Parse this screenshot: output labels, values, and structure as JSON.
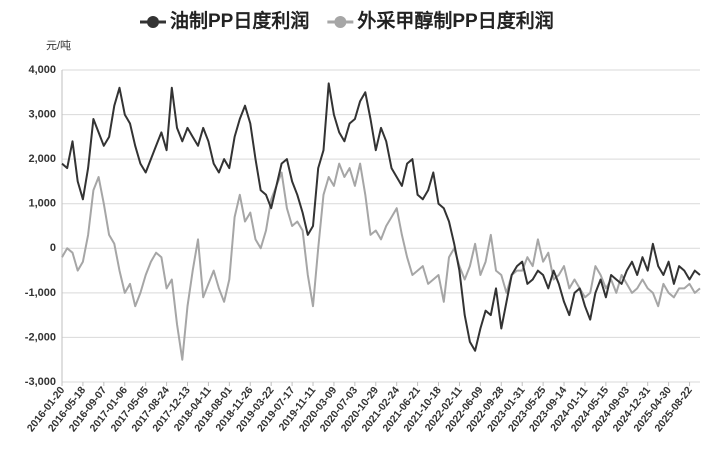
{
  "chart_data": {
    "type": "line",
    "y_unit": "元/吨",
    "categories": [
      "2016-01-20",
      null,
      null,
      null,
      "2016-05-18",
      null,
      null,
      null,
      "2016-09-07",
      null,
      null,
      null,
      "2017-01-06",
      null,
      null,
      null,
      "2017-05-05",
      null,
      null,
      null,
      "2017-08-24",
      null,
      null,
      null,
      "2017-12-13",
      null,
      null,
      null,
      "2018-04-11",
      null,
      null,
      null,
      "2018-08-01",
      null,
      null,
      null,
      "2018-11-26",
      null,
      null,
      null,
      "2019-03-22",
      null,
      null,
      null,
      "2019-07-17",
      null,
      null,
      null,
      "2019-11-11",
      null,
      null,
      null,
      "2020-03-09",
      null,
      null,
      null,
      "2020-07-03",
      null,
      null,
      null,
      "2020-10-29",
      null,
      null,
      null,
      "2021-02-24",
      null,
      null,
      null,
      "2021-06-21",
      null,
      null,
      null,
      "2021-10-18",
      null,
      null,
      null,
      "2022-02-11",
      null,
      null,
      null,
      "2022-06-09",
      null,
      null,
      null,
      "2022-09-28",
      null,
      null,
      null,
      "2023-01-31",
      null,
      null,
      null,
      "2023-05-25",
      null,
      null,
      null,
      "2023-09-14",
      null,
      null,
      null,
      "2024-01-11",
      null,
      null,
      null,
      "2024-05-15",
      null,
      null,
      null,
      "2024-09-03",
      null,
      null,
      null,
      "2024-12-31",
      null,
      null,
      null,
      "2025-04-30",
      null,
      null,
      null,
      "2025-08-22",
      null,
      null
    ],
    "series": [
      {
        "name": "油制PP日度利润",
        "color": "#333333",
        "values": [
          1900,
          1800,
          2400,
          1500,
          1100,
          1800,
          2900,
          2600,
          2300,
          2500,
          3200,
          3600,
          3000,
          2800,
          2300,
          1900,
          1700,
          2000,
          2300,
          2600,
          2200,
          3600,
          2700,
          2400,
          2700,
          2500,
          2300,
          2700,
          2400,
          1900,
          1700,
          2000,
          1800,
          2500,
          2900,
          3200,
          2800,
          2000,
          1300,
          1200,
          900,
          1400,
          1900,
          2000,
          1500,
          1200,
          800,
          300,
          500,
          1800,
          2200,
          3700,
          3000,
          2600,
          2400,
          2800,
          2900,
          3300,
          3500,
          2900,
          2200,
          2700,
          2400,
          1800,
          1600,
          1400,
          1900,
          2000,
          1200,
          1100,
          1300,
          1700,
          1000,
          900,
          600,
          100,
          -500,
          -1500,
          -2100,
          -2300,
          -1800,
          -1400,
          -1500,
          -900,
          -1800,
          -1200,
          -600,
          -400,
          -300,
          -800,
          -700,
          -500,
          -600,
          -900,
          -500,
          -800,
          -1200,
          -1500,
          -1000,
          -900,
          -1300,
          -1600,
          -1000,
          -700,
          -1100,
          -600,
          -700,
          -800,
          -500,
          -300,
          -600,
          -200,
          -500,
          100,
          -400,
          -600,
          -300,
          -800,
          -400,
          -500,
          -700,
          -500,
          -600
        ]
      },
      {
        "name": "外采甲醇制PP日度利润",
        "color": "#a6a6a6",
        "values": [
          -200,
          0,
          -100,
          -500,
          -300,
          300,
          1300,
          1600,
          1000,
          300,
          100,
          -500,
          -1000,
          -800,
          -1300,
          -1000,
          -600,
          -300,
          -100,
          -200,
          -900,
          -700,
          -1700,
          -2500,
          -1300,
          -500,
          200,
          -1100,
          -800,
          -500,
          -900,
          -1200,
          -700,
          700,
          1200,
          600,
          800,
          200,
          0,
          400,
          1100,
          1400,
          1700,
          900,
          500,
          600,
          400,
          -600,
          -1300,
          0,
          1200,
          1600,
          1400,
          1900,
          1600,
          1800,
          1400,
          1900,
          1200,
          300,
          400,
          200,
          500,
          700,
          900,
          300,
          -200,
          -600,
          -500,
          -400,
          -800,
          -700,
          -600,
          -1200,
          -200,
          0,
          -400,
          -700,
          -400,
          100,
          -600,
          -300,
          300,
          -500,
          -600,
          -1000,
          -600,
          -500,
          -500,
          -200,
          -400,
          200,
          -300,
          -100,
          -700,
          -600,
          -400,
          -900,
          -700,
          -900,
          -1100,
          -1000,
          -400,
          -600,
          -900,
          -700,
          -1000,
          -600,
          -800,
          -1000,
          -900,
          -700,
          -900,
          -1000,
          -1300,
          -800,
          -1000,
          -1100,
          -900,
          -900,
          -800,
          -1000,
          -900
        ]
      }
    ],
    "ylim": [
      -3000,
      4000
    ],
    "yticks": [
      {
        "value": -3000,
        "label": "-3,000"
      },
      {
        "value": -2000,
        "label": "-2,000"
      },
      {
        "value": -1000,
        "label": "-1,000"
      },
      0,
      {
        "value": 1000,
        "label": "1,000"
      },
      {
        "value": 2000,
        "label": "2,000"
      },
      {
        "value": 3000,
        "label": "3,000"
      },
      {
        "value": 4000,
        "label": "4,000"
      }
    ],
    "grid": true,
    "legend": "top"
  }
}
